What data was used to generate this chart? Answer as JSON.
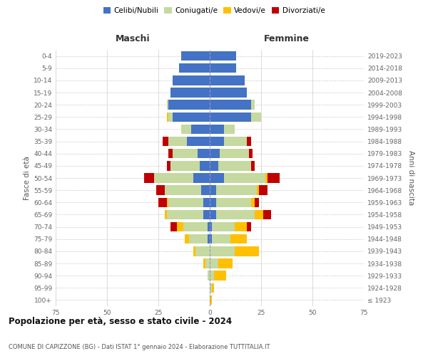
{
  "age_groups": [
    "100+",
    "95-99",
    "90-94",
    "85-89",
    "80-84",
    "75-79",
    "70-74",
    "65-69",
    "60-64",
    "55-59",
    "50-54",
    "45-49",
    "40-44",
    "35-39",
    "30-34",
    "25-29",
    "20-24",
    "15-19",
    "10-14",
    "5-9",
    "0-4"
  ],
  "birth_years": [
    "≤ 1923",
    "1924-1928",
    "1929-1933",
    "1934-1938",
    "1939-1943",
    "1944-1948",
    "1949-1953",
    "1954-1958",
    "1959-1963",
    "1964-1968",
    "1969-1973",
    "1974-1978",
    "1979-1983",
    "1984-1988",
    "1989-1993",
    "1994-1998",
    "1999-2003",
    "2004-2008",
    "2009-2013",
    "2014-2018",
    "2019-2023"
  ],
  "maschi": {
    "celibi": [
      0,
      0,
      0,
      0,
      0,
      1,
      1,
      3,
      3,
      4,
      8,
      5,
      6,
      11,
      9,
      18,
      20,
      19,
      18,
      15,
      14
    ],
    "coniugati": [
      0,
      0,
      1,
      2,
      7,
      9,
      12,
      18,
      17,
      18,
      19,
      14,
      12,
      9,
      5,
      2,
      1,
      0,
      0,
      0,
      0
    ],
    "vedovi": [
      0,
      0,
      0,
      1,
      1,
      2,
      3,
      1,
      1,
      0,
      0,
      0,
      0,
      0,
      0,
      1,
      0,
      0,
      0,
      0,
      0
    ],
    "divorziati": [
      0,
      0,
      0,
      0,
      0,
      0,
      3,
      0,
      4,
      4,
      5,
      2,
      2,
      3,
      0,
      0,
      0,
      0,
      0,
      0,
      0
    ]
  },
  "femmine": {
    "nubili": [
      0,
      0,
      0,
      0,
      0,
      1,
      1,
      3,
      3,
      3,
      7,
      4,
      5,
      7,
      7,
      20,
      20,
      18,
      17,
      13,
      13
    ],
    "coniugate": [
      0,
      1,
      2,
      4,
      12,
      9,
      11,
      19,
      17,
      20,
      20,
      16,
      14,
      11,
      5,
      5,
      2,
      0,
      0,
      0,
      0
    ],
    "vedove": [
      1,
      1,
      6,
      7,
      12,
      8,
      6,
      4,
      2,
      1,
      1,
      0,
      0,
      0,
      0,
      0,
      0,
      0,
      0,
      0,
      0
    ],
    "divorziate": [
      0,
      0,
      0,
      0,
      0,
      0,
      2,
      4,
      2,
      4,
      6,
      2,
      2,
      2,
      0,
      0,
      0,
      0,
      0,
      0,
      0
    ]
  },
  "colors": {
    "celibi": "#4472c4",
    "coniugati": "#c5d9a0",
    "vedovi": "#ffc000",
    "divorziati": "#c00000"
  },
  "title": "Popolazione per età, sesso e stato civile - 2024",
  "subtitle": "COMUNE DI CAPIZZONE (BG) - Dati ISTAT 1° gennaio 2024 - Elaborazione TUTTITALIA.IT",
  "xlabel_left": "Maschi",
  "xlabel_right": "Femmine",
  "ylabel_left": "Fasce di età",
  "ylabel_right": "Anni di nascita",
  "xlim": 75,
  "legend_labels": [
    "Celibi/Nubili",
    "Coniugati/e",
    "Vedovi/e",
    "Divorziati/e"
  ],
  "background_color": "#ffffff",
  "grid_color": "#cccccc"
}
